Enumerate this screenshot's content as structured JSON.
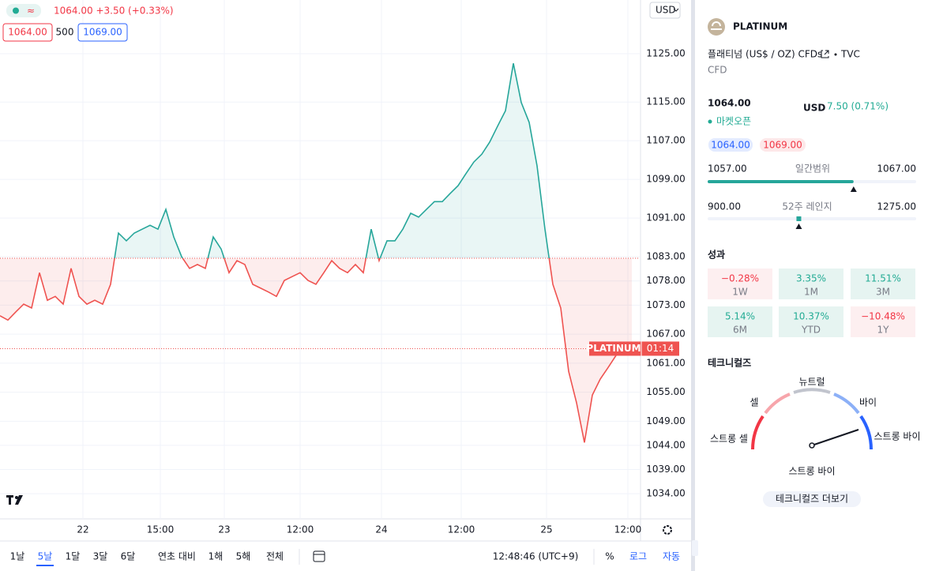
{
  "header": {
    "legend": {
      "price_change": "1064.00 +3.50 (+0.33%)",
      "bid": "1064.00",
      "spread": "500",
      "ask": "1069.00"
    },
    "currency": "USD"
  },
  "chart_data": {
    "type": "baseline",
    "x": [
      0,
      1,
      2,
      3,
      4,
      5,
      6,
      7,
      8,
      9,
      10,
      11,
      12,
      13,
      14,
      15,
      16,
      17,
      18,
      19,
      20,
      21,
      22,
      23,
      24,
      25,
      26,
      27,
      28,
      29,
      30,
      31,
      32,
      33,
      34,
      35,
      36,
      37,
      38,
      39,
      40,
      41,
      42,
      43,
      44,
      45,
      46,
      47,
      48,
      49,
      50,
      51,
      52,
      53,
      54,
      55,
      56,
      57,
      58,
      59,
      60,
      61,
      62,
      63,
      64,
      65,
      66,
      67,
      68,
      69,
      70,
      71,
      72,
      73,
      74,
      75,
      76,
      77,
      78,
      79,
      80
    ],
    "values": [
      1070.8,
      1069.9,
      1071.6,
      1073.2,
      1072.4,
      1079.7,
      1074.0,
      1074.8,
      1073.2,
      1080.6,
      1074.8,
      1073.2,
      1074.0,
      1073.2,
      1077.3,
      1087.9,
      1086.3,
      1087.9,
      1088.7,
      1089.5,
      1088.7,
      1092.8,
      1087.1,
      1083.0,
      1080.6,
      1081.4,
      1080.6,
      1087.1,
      1084.6,
      1079.7,
      1082.2,
      1081.4,
      1077.3,
      1076.5,
      1075.7,
      1074.8,
      1078.1,
      1078.9,
      1079.7,
      1078.1,
      1077.3,
      1079.7,
      1082.2,
      1080.6,
      1079.7,
      1081.4,
      1079.7,
      1088.7,
      1082.2,
      1086.3,
      1086.3,
      1088.7,
      1092.0,
      1091.2,
      1092.8,
      1094.4,
      1094.4,
      1096.1,
      1097.7,
      1100.2,
      1102.6,
      1104.2,
      1106.7,
      1110.0,
      1113.2,
      1123.0,
      1114.9,
      1110.8,
      1101.8,
      1088.7,
      1077.3,
      1072.4,
      1059.3,
      1052.8,
      1044.6,
      1054.4,
      1057.7,
      1060.1,
      1062.6,
      1064.2,
      1064.0
    ],
    "xlim": [
      0,
      81
    ],
    "xticks": [
      {
        "value": 10.5,
        "label": "22"
      },
      {
        "value": 20.3,
        "label": "15:00"
      },
      {
        "value": 28.4,
        "label": "23"
      },
      {
        "value": 38,
        "label": "12:00"
      },
      {
        "value": 48.3,
        "label": "24"
      },
      {
        "value": 58.4,
        "label": "12:00"
      },
      {
        "value": 69.2,
        "label": "25"
      },
      {
        "value": 79.5,
        "label": "12:00"
      }
    ],
    "ylim": [
      1028.8,
      1136.1
    ],
    "yticks": [
      {
        "value": 1125,
        "label": "1125.00"
      },
      {
        "value": 1115,
        "label": "1115.00"
      },
      {
        "value": 1107,
        "label": "1107.00"
      },
      {
        "value": 1099,
        "label": "1099.00"
      },
      {
        "value": 1091,
        "label": "1091.00"
      },
      {
        "value": 1083,
        "label": "1083.00"
      },
      {
        "value": 1078,
        "label": "1078.00"
      },
      {
        "value": 1073,
        "label": "1073.00"
      },
      {
        "value": 1067,
        "label": "1067.00"
      },
      {
        "value": 1061,
        "label": "1061.00"
      },
      {
        "value": 1055,
        "label": "1055.00"
      },
      {
        "value": 1049,
        "label": "1049.00"
      },
      {
        "value": 1044,
        "label": "1044.00"
      },
      {
        "value": 1039,
        "label": "1039.00"
      },
      {
        "value": 1034,
        "label": "1034.00"
      }
    ],
    "baseline": 1082.7,
    "colors": {
      "above": "#26a69a",
      "below": "#ef5350"
    },
    "grid": true,
    "price_tag": {
      "label": "PLATINUM",
      "timer": "01:14"
    }
  },
  "toolbar": {
    "ranges": [
      "1날",
      "5날",
      "1달",
      "3달",
      "6달",
      "연초 대비",
      "1해",
      "5해",
      "전체"
    ],
    "active": 1,
    "clock": "12:48:46 (UTC+9)",
    "percent": "%",
    "log": "로그",
    "auto": "자동"
  },
  "panel": {
    "symbol": "PLATINUM",
    "description": "플래티넘 (US$ / OZ) CFDs",
    "exchange": "TVC",
    "kind": "CFD",
    "price": "1064.00",
    "currency": "USD",
    "change": "7.50 (0.71%)",
    "status": "마켓오픈",
    "bid": "1064.00",
    "ask": "1069.00",
    "day_range": {
      "low": {
        "value": 1057,
        "label": "1057.00"
      },
      "title": "일간범위",
      "high": {
        "value": 1067,
        "label": "1067.00"
      },
      "current": 1064
    },
    "year_range": {
      "low": {
        "value": 900,
        "label": "900.00"
      },
      "title": "52주 레인지",
      "high": {
        "value": 1275,
        "label": "1275.00"
      },
      "current": 1064
    },
    "performance": {
      "title": "성과",
      "cells": [
        {
          "value": "−0.28%",
          "period": "1W"
        },
        {
          "value": "3.35%",
          "period": "1M"
        },
        {
          "value": "11.51%",
          "period": "3M"
        },
        {
          "value": "5.14%",
          "period": "6M"
        },
        {
          "value": "10.37%",
          "period": "YTD"
        },
        {
          "value": "−10.48%",
          "period": "1Y"
        }
      ]
    },
    "technicals": {
      "title": "테크니컬즈",
      "labels": {
        "strong_sell": "스트롱 셀",
        "sell": "셀",
        "neutral": "뉴트럴",
        "buy": "바이",
        "strong_buy": "스트롱 바이"
      },
      "result": "스트롱 바이",
      "button": "테크니컬즈 더보기"
    }
  }
}
